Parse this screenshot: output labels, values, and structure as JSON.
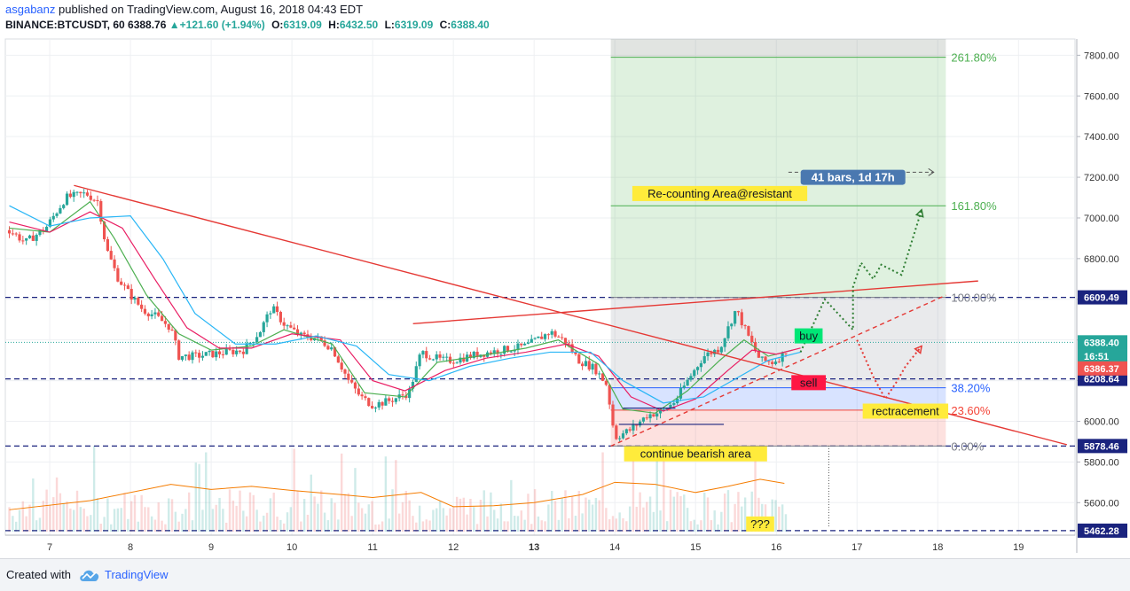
{
  "header": {
    "user": "asgabanz",
    "published": "published on TradingView.com, August 16, 2018 04:43 EDT",
    "symbol": "BINANCE:BTCUSDT, 60",
    "last": "6388.76",
    "change": "+121.60 (+1.94%)",
    "open_label": "O:",
    "open": "6319.09",
    "high_label": "H:",
    "high": "6432.50",
    "low_label": "L:",
    "low": "6319.09",
    "close_label": "C:",
    "close": "6388.40"
  },
  "footer": {
    "created_with": "Created with",
    "brand": "TradingView"
  },
  "chart_data": {
    "type": "candlestick",
    "title": "",
    "x_labels": [
      "7",
      "8",
      "9",
      "10",
      "11",
      "12",
      "13",
      "14",
      "15",
      "16",
      "17",
      "18",
      "19"
    ],
    "x_label_bold": [
      "13"
    ],
    "y_ticks": [
      7800,
      7600,
      7400,
      7200,
      7000,
      6800,
      6600,
      6400,
      6200,
      6000,
      5800,
      5600
    ],
    "y_tick_labels": [
      "7800.00",
      "7600.00",
      "7400.00",
      "7200.00",
      "7000.00",
      "6800.00",
      "6600.00",
      "6400.00",
      "6200.00",
      "6000.00",
      "5800.00",
      "5600.00"
    ],
    "ylim": [
      5440,
      7880
    ],
    "price_path": [
      [
        6.5,
        6940
      ],
      [
        6.7,
        6880
      ],
      [
        6.95,
        6950
      ],
      [
        7.2,
        7100
      ],
      [
        7.45,
        7120
      ],
      [
        7.6,
        7080
      ],
      [
        7.7,
        6850
      ],
      [
        7.85,
        6700
      ],
      [
        8.0,
        6620
      ],
      [
        8.15,
        6550
      ],
      [
        8.3,
        6520
      ],
      [
        8.5,
        6460
      ],
      [
        8.6,
        6320
      ],
      [
        8.8,
        6320
      ],
      [
        9.0,
        6330
      ],
      [
        9.2,
        6340
      ],
      [
        9.4,
        6350
      ],
      [
        9.6,
        6440
      ],
      [
        9.75,
        6560
      ],
      [
        9.9,
        6480
      ],
      [
        10.1,
        6420
      ],
      [
        10.3,
        6410
      ],
      [
        10.5,
        6360
      ],
      [
        10.7,
        6200
      ],
      [
        10.85,
        6120
      ],
      [
        11.0,
        6080
      ],
      [
        11.2,
        6100
      ],
      [
        11.45,
        6140
      ],
      [
        11.6,
        6340
      ],
      [
        11.85,
        6300
      ],
      [
        12.0,
        6300
      ],
      [
        12.3,
        6330
      ],
      [
        12.6,
        6350
      ],
      [
        12.9,
        6370
      ],
      [
        13.2,
        6440
      ],
      [
        13.4,
        6390
      ],
      [
        13.55,
        6300
      ],
      [
        13.75,
        6260
      ],
      [
        13.9,
        6180
      ],
      [
        14.0,
        5920
      ],
      [
        14.2,
        5960
      ],
      [
        14.4,
        6030
      ],
      [
        14.6,
        6050
      ],
      [
        14.75,
        6100
      ],
      [
        14.9,
        6200
      ],
      [
        15.1,
        6320
      ],
      [
        15.3,
        6360
      ],
      [
        15.5,
        6550
      ],
      [
        15.65,
        6420
      ],
      [
        15.8,
        6300
      ],
      [
        15.95,
        6290
      ],
      [
        16.1,
        6330
      ],
      [
        16.15,
        6388
      ]
    ],
    "moving_averages": [
      {
        "color": "#4caf50",
        "path": [
          [
            6.5,
            6950
          ],
          [
            7.0,
            6930
          ],
          [
            7.5,
            7080
          ],
          [
            7.8,
            6900
          ],
          [
            8.2,
            6620
          ],
          [
            8.6,
            6430
          ],
          [
            9.0,
            6350
          ],
          [
            9.5,
            6370
          ],
          [
            9.9,
            6450
          ],
          [
            10.5,
            6380
          ],
          [
            10.9,
            6140
          ],
          [
            11.4,
            6120
          ],
          [
            11.8,
            6290
          ],
          [
            12.3,
            6320
          ],
          [
            12.9,
            6360
          ],
          [
            13.3,
            6400
          ],
          [
            13.8,
            6280
          ],
          [
            14.1,
            6060
          ],
          [
            14.5,
            6040
          ],
          [
            14.9,
            6150
          ],
          [
            15.3,
            6300
          ],
          [
            15.6,
            6400
          ],
          [
            15.9,
            6320
          ],
          [
            16.2,
            6350
          ]
        ]
      },
      {
        "color": "#e91e63",
        "path": [
          [
            6.5,
            6980
          ],
          [
            7.0,
            6930
          ],
          [
            7.5,
            7030
          ],
          [
            7.9,
            6950
          ],
          [
            8.3,
            6700
          ],
          [
            8.7,
            6460
          ],
          [
            9.1,
            6360
          ],
          [
            9.5,
            6360
          ],
          [
            10.0,
            6430
          ],
          [
            10.6,
            6400
          ],
          [
            11.0,
            6200
          ],
          [
            11.4,
            6150
          ],
          [
            11.9,
            6250
          ],
          [
            12.4,
            6310
          ],
          [
            12.9,
            6340
          ],
          [
            13.4,
            6380
          ],
          [
            13.8,
            6320
          ],
          [
            14.2,
            6120
          ],
          [
            14.6,
            6050
          ],
          [
            15.0,
            6110
          ],
          [
            15.4,
            6250
          ],
          [
            15.7,
            6350
          ],
          [
            16.0,
            6330
          ],
          [
            16.3,
            6360
          ]
        ]
      },
      {
        "color": "#29b6f6",
        "path": [
          [
            6.5,
            7060
          ],
          [
            7.0,
            6960
          ],
          [
            7.5,
            7000
          ],
          [
            8.0,
            7010
          ],
          [
            8.4,
            6800
          ],
          [
            8.8,
            6530
          ],
          [
            9.3,
            6380
          ],
          [
            9.8,
            6380
          ],
          [
            10.3,
            6420
          ],
          [
            10.8,
            6370
          ],
          [
            11.2,
            6230
          ],
          [
            11.7,
            6200
          ],
          [
            12.2,
            6270
          ],
          [
            12.7,
            6310
          ],
          [
            13.2,
            6340
          ],
          [
            13.7,
            6340
          ],
          [
            14.1,
            6200
          ],
          [
            14.6,
            6090
          ],
          [
            15.1,
            6120
          ],
          [
            15.5,
            6210
          ],
          [
            15.9,
            6300
          ],
          [
            16.3,
            6340
          ]
        ]
      }
    ],
    "volume_ma": [
      [
        6.5,
        5565
      ],
      [
        7.5,
        5610
      ],
      [
        8.5,
        5690
      ],
      [
        9.0,
        5665
      ],
      [
        9.5,
        5680
      ],
      [
        10.0,
        5660
      ],
      [
        10.6,
        5640
      ],
      [
        11.0,
        5625
      ],
      [
        11.6,
        5650
      ],
      [
        12.0,
        5580
      ],
      [
        12.5,
        5585
      ],
      [
        13.0,
        5600
      ],
      [
        13.6,
        5640
      ],
      [
        14.0,
        5700
      ],
      [
        14.5,
        5690
      ],
      [
        15.0,
        5650
      ],
      [
        15.4,
        5680
      ],
      [
        15.8,
        5715
      ],
      [
        16.1,
        5695
      ]
    ],
    "horizontal_levels": [
      {
        "price": 6609.49,
        "label": "6609.49"
      },
      {
        "price": 6208.64,
        "label": "6208.64"
      },
      {
        "price": 5878.46,
        "label": "5878.46"
      },
      {
        "price": 5462.28,
        "label": "5462.28"
      }
    ],
    "last_price_labels": [
      {
        "price": 6388.4,
        "label": "6388.40",
        "color": "#26a69a"
      },
      {
        "price": 6320,
        "label": "16:51",
        "color": "#26a69a"
      },
      {
        "price": 6260,
        "label": "6386.37",
        "color": "#ef5350"
      }
    ],
    "fibonacci": {
      "x_start": 13.95,
      "x_end": 18.1,
      "levels": [
        {
          "ratio": "0.00%",
          "price": 5878.46,
          "color": "#787b86"
        },
        {
          "ratio": "23.60%",
          "price": 6055,
          "color": "#f44336"
        },
        {
          "ratio": "38.20%",
          "price": 6165,
          "color": "#2962ff"
        },
        {
          "ratio": "100.00%",
          "price": 6609.49,
          "color": "#787b86"
        },
        {
          "ratio": "161.80%",
          "price": 7060,
          "color": "#4caf50"
        },
        {
          "ratio": "261.80%",
          "price": 7790,
          "color": "#4caf50"
        }
      ]
    },
    "trendlines": [
      {
        "color": "#e53935",
        "from": [
          7.3,
          7160
        ],
        "to": [
          19.6,
          5885
        ],
        "dash": false
      },
      {
        "color": "#e53935",
        "from": [
          11.5,
          6480
        ],
        "to": [
          18.5,
          6690
        ],
        "dash": false
      },
      {
        "color": "#e53935",
        "from": [
          13.95,
          5878
        ],
        "to": [
          18.1,
          6620
        ],
        "dash": true
      }
    ],
    "projection_paths": [
      {
        "color": "#2e7d32",
        "points": [
          [
            16.3,
            6340
          ],
          [
            16.6,
            6600
          ],
          [
            16.95,
            6450
          ],
          [
            16.95,
            6660
          ],
          [
            17.05,
            6780
          ],
          [
            17.2,
            6700
          ],
          [
            17.3,
            6770
          ],
          [
            17.55,
            6720
          ],
          [
            17.8,
            7040
          ]
        ]
      },
      {
        "color": "#e53935",
        "points": [
          [
            17.0,
            6400
          ],
          [
            17.2,
            6220
          ],
          [
            17.35,
            6110
          ],
          [
            17.5,
            6200
          ],
          [
            17.6,
            6270
          ],
          [
            17.8,
            6370
          ]
        ]
      }
    ],
    "annotations": [
      {
        "text": "Re-counting Area@resistant",
        "x": 15.3,
        "price": 7120,
        "bg": "#ffeb3b",
        "fg": "#131722"
      },
      {
        "text": "41 bars, 1d 17h",
        "x": 16.95,
        "price": 7200,
        "bg": "#4a78b0",
        "fg": "#ffffff"
      },
      {
        "text": "buy",
        "x": 16.4,
        "price": 6420,
        "bg": "#00e676",
        "fg": "#131722"
      },
      {
        "text": "sell",
        "x": 16.4,
        "price": 6190,
        "bg": "#ff1744",
        "fg": "#131722"
      },
      {
        "text": "rectracement",
        "x": 17.6,
        "price": 6050,
        "bg": "#ffeb3b",
        "fg": "#131722"
      },
      {
        "text": "continue bearish area",
        "x": 15.0,
        "price": 5840,
        "bg": "#ffeb3b",
        "fg": "#131722"
      },
      {
        "text": "???",
        "x": 15.8,
        "price": 5495,
        "bg": "#ffeb3b",
        "fg": "#131722"
      }
    ]
  },
  "colors": {
    "up": "#26a69a",
    "down": "#ef5350",
    "accent": "#2962ff",
    "axis_bg": "#ffffff"
  }
}
